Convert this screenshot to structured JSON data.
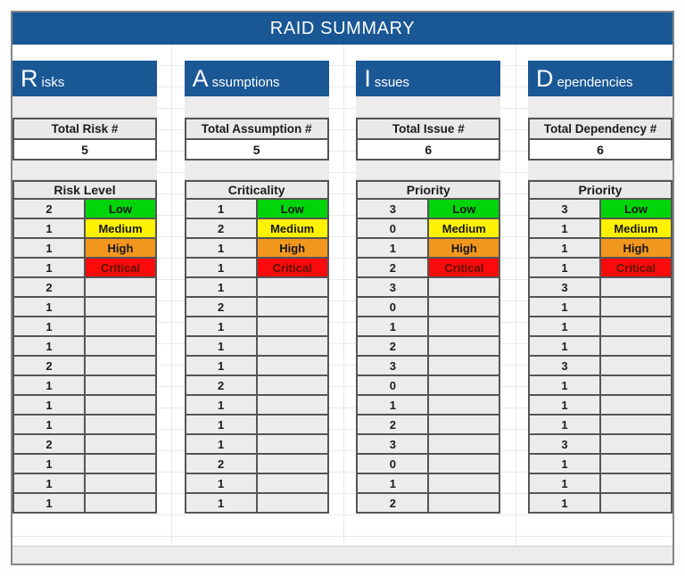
{
  "banner": {
    "title": "RAID SUMMARY"
  },
  "colors": {
    "header_blue": "#1A5795",
    "frame_border": "#858585",
    "cell_border": "#555555",
    "cell_gray": "#ececec",
    "low_green": "#00D40A",
    "medium_yellow": "#FFF200",
    "high_orange": "#F2971E",
    "critical_red": "#FA0A0A",
    "critical_text": "#5A1405",
    "level_text": "#161616"
  },
  "sections": [
    {
      "id": "risks",
      "letter": "R",
      "rest": "isks",
      "total_label": "Total Risk #",
      "total_value": "5",
      "level_header": "Risk Level",
      "levels": [
        {
          "count": "2",
          "label": "Low",
          "bg": "#00D40A",
          "fg": "#161616"
        },
        {
          "count": "1",
          "label": "Medium",
          "bg": "#FFF200",
          "fg": "#161616"
        },
        {
          "count": "1",
          "label": "High",
          "bg": "#F2971E",
          "fg": "#161616"
        },
        {
          "count": "1",
          "label": "Critical",
          "bg": "#FA0A0A",
          "fg": "#5A1405"
        }
      ],
      "rows": [
        "2",
        "1",
        "1",
        "1",
        "2",
        "1",
        "1",
        "1",
        "2",
        "1",
        "1",
        "1"
      ]
    },
    {
      "id": "assumptions",
      "letter": "A",
      "rest": "ssumptions",
      "total_label": "Total Assumption #",
      "total_value": "5",
      "level_header": "Criticality",
      "levels": [
        {
          "count": "1",
          "label": "Low",
          "bg": "#00D40A",
          "fg": "#161616"
        },
        {
          "count": "2",
          "label": "Medium",
          "bg": "#FFF200",
          "fg": "#161616"
        },
        {
          "count": "1",
          "label": "High",
          "bg": "#F2971E",
          "fg": "#161616"
        },
        {
          "count": "1",
          "label": "Critical",
          "bg": "#FA0A0A",
          "fg": "#5A1405"
        }
      ],
      "rows": [
        "1",
        "2",
        "1",
        "1",
        "1",
        "2",
        "1",
        "1",
        "1",
        "2",
        "1",
        "1"
      ]
    },
    {
      "id": "issues",
      "letter": "I",
      "rest": "ssues",
      "total_label": "Total Issue #",
      "total_value": "6",
      "level_header": "Priority",
      "levels": [
        {
          "count": "3",
          "label": "Low",
          "bg": "#00D40A",
          "fg": "#161616"
        },
        {
          "count": "0",
          "label": "Medium",
          "bg": "#FFF200",
          "fg": "#161616"
        },
        {
          "count": "1",
          "label": "High",
          "bg": "#F2971E",
          "fg": "#161616"
        },
        {
          "count": "2",
          "label": "Critical",
          "bg": "#FA0A0A",
          "fg": "#5A1405"
        }
      ],
      "rows": [
        "3",
        "0",
        "1",
        "2",
        "3",
        "0",
        "1",
        "2",
        "3",
        "0",
        "1",
        "2"
      ]
    },
    {
      "id": "dependencies",
      "letter": "D",
      "rest": "ependencies",
      "total_label": "Total Dependency #",
      "total_value": "6",
      "level_header": "Priority",
      "levels": [
        {
          "count": "3",
          "label": "Low",
          "bg": "#00D40A",
          "fg": "#161616"
        },
        {
          "count": "1",
          "label": "Medium",
          "bg": "#FFF200",
          "fg": "#161616"
        },
        {
          "count": "1",
          "label": "High",
          "bg": "#F2971E",
          "fg": "#161616"
        },
        {
          "count": "1",
          "label": "Critical",
          "bg": "#FA0A0A",
          "fg": "#5A1405"
        }
      ],
      "rows": [
        "3",
        "1",
        "1",
        "1",
        "3",
        "1",
        "1",
        "1",
        "3",
        "1",
        "1",
        "1"
      ]
    }
  ]
}
